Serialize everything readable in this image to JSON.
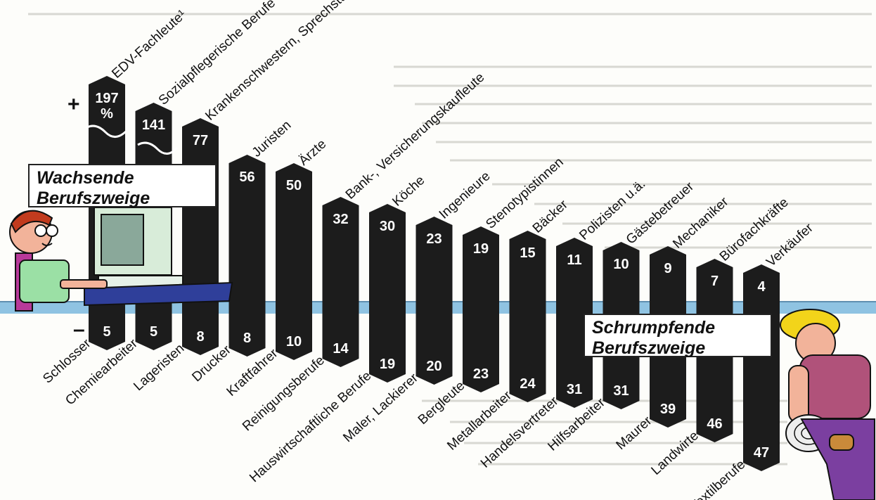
{
  "chart_data": {
    "type": "bar",
    "growing_label_line1": "Wachsende",
    "growing_label_line2": "Berufszweige",
    "shrinking_label_line1": "Schrumpfende",
    "shrinking_label_line2": "Berufszweige",
    "plus_sign": "+",
    "minus_sign": "–",
    "growing": [
      {
        "category": "EDV-Fachleute¹",
        "value": "197",
        "unit": "%"
      },
      {
        "category": "Sozialpflegerische Berufe",
        "value": "141"
      },
      {
        "category": "Krankenschwestern, Sprechstundenhelfer",
        "value": "77"
      },
      {
        "category": "Juristen",
        "value": "56"
      },
      {
        "category": "Ärzte",
        "value": "50"
      },
      {
        "category": "Bank-, Versicherungskaufleute",
        "value": "32"
      },
      {
        "category": "Köche",
        "value": "30"
      },
      {
        "category": "Ingenieure",
        "value": "23"
      },
      {
        "category": "Stenotypistinnen",
        "value": "19"
      },
      {
        "category": "Bäcker",
        "value": "15"
      },
      {
        "category": "Polizisten u.ä.",
        "value": "11"
      },
      {
        "category": "Gästebetreuer",
        "value": "10"
      },
      {
        "category": "Mechaniker",
        "value": "9"
      },
      {
        "category": "Bürofachkräfte",
        "value": "7"
      },
      {
        "category": "Verkäufer",
        "value": "4"
      }
    ],
    "shrinking": [
      {
        "category": "Schlosser",
        "value": "5"
      },
      {
        "category": "Chemiearbeiter",
        "value": "5"
      },
      {
        "category": "Lageristen",
        "value": "8"
      },
      {
        "category": "Drucker",
        "value": "8"
      },
      {
        "category": "Kraftfahrer",
        "value": "10"
      },
      {
        "category": "Reinigungsberufe",
        "value": "14"
      },
      {
        "category": "Hauswirtschaftliche Berufe",
        "value": "19"
      },
      {
        "category": "Maler, Lackierer",
        "value": "20"
      },
      {
        "category": "Bergleute",
        "value": "23"
      },
      {
        "category": "Metallarbeiter",
        "value": "24"
      },
      {
        "category": "Handelsvertreter",
        "value": "31"
      },
      {
        "category": "Hilfsarbeiter",
        "value": "31"
      },
      {
        "category": "Maurer",
        "value": "39"
      },
      {
        "category": "Landwirte",
        "value": "46"
      },
      {
        "category": "Textilberufe",
        "value": "47"
      }
    ]
  }
}
